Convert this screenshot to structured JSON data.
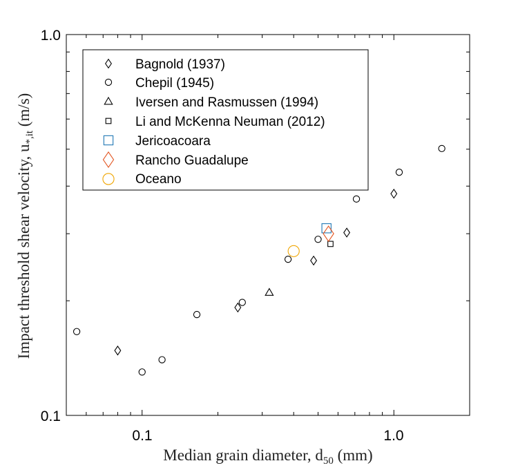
{
  "chart_data": {
    "type": "scatter",
    "title": "",
    "xlabel": "Median grain diameter, d",
    "xlabel_sub": "50",
    "xlabel_unit": " (mm)",
    "ylabel": "Impact threshold shear velocity, u",
    "ylabel_sub": "*,it",
    "ylabel_unit": " (m/s)",
    "xscale": "log",
    "yscale": "log",
    "xlim": [
      0.05,
      2.0
    ],
    "ylim": [
      0.1,
      1.0
    ],
    "grid": false,
    "legend_position": "top-left",
    "x_ticks": [
      0.1,
      1.0
    ],
    "x_tick_labels": [
      "0.1",
      "1.0"
    ],
    "y_ticks": [
      0.1,
      1.0
    ],
    "y_tick_labels": [
      "0.1",
      "1.0"
    ],
    "series": [
      {
        "name": "Bagnold (1937)",
        "marker": "diamond",
        "color": "#000000",
        "size": "small",
        "points": [
          [
            0.08,
            0.148
          ],
          [
            0.24,
            0.192
          ],
          [
            0.48,
            0.255
          ],
          [
            0.65,
            0.302
          ],
          [
            1.0,
            0.382
          ]
        ]
      },
      {
        "name": "Chepil (1945)",
        "marker": "circle",
        "color": "#000000",
        "size": "small",
        "points": [
          [
            0.055,
            0.166
          ],
          [
            0.1,
            0.13
          ],
          [
            0.12,
            0.14
          ],
          [
            0.165,
            0.184
          ],
          [
            0.25,
            0.198
          ],
          [
            0.38,
            0.257
          ],
          [
            0.5,
            0.29
          ],
          [
            0.71,
            0.37
          ],
          [
            1.05,
            0.435
          ],
          [
            1.55,
            0.502
          ]
        ]
      },
      {
        "name": "Iversen and Rasmussen (1994)",
        "marker": "triangle",
        "color": "#000000",
        "size": "small",
        "points": [
          [
            0.32,
            0.21
          ]
        ]
      },
      {
        "name": "Li and McKenna Neuman (2012)",
        "marker": "square",
        "color": "#000000",
        "size": "small",
        "points": [
          [
            0.56,
            0.282
          ]
        ]
      },
      {
        "name": "Jericoacoara",
        "marker": "square",
        "color": "#1f77b4",
        "size": "large",
        "points": [
          [
            0.54,
            0.31
          ]
        ]
      },
      {
        "name": "Rancho Guadalupe",
        "marker": "diamond",
        "color": "#e2531e",
        "size": "large",
        "points": [
          [
            0.55,
            0.3
          ]
        ]
      },
      {
        "name": "Oceano",
        "marker": "circle",
        "color": "#f0a500",
        "size": "large",
        "points": [
          [
            0.4,
            0.27
          ]
        ]
      }
    ]
  }
}
